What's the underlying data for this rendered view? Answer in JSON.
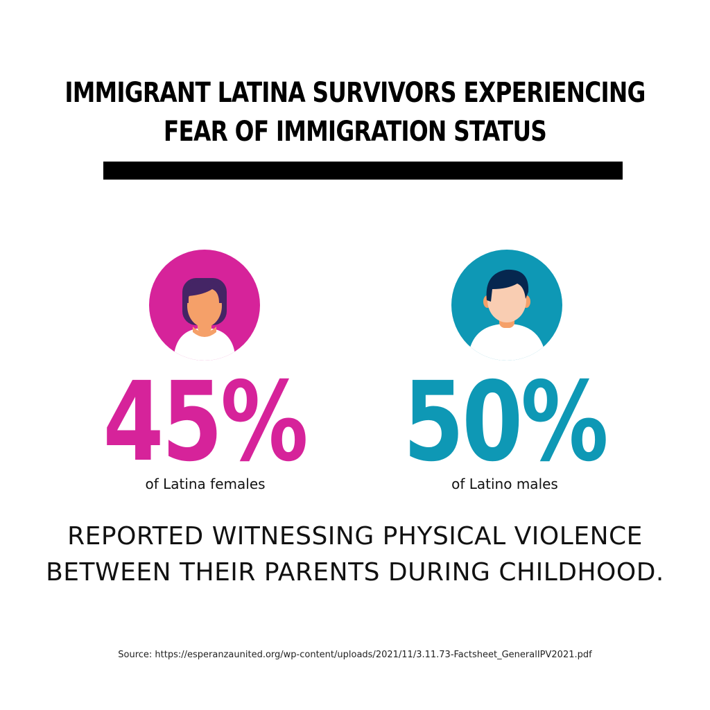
{
  "title": {
    "line1": "IMMIGRANT LATINA SURVIVORS EXPERIENCING",
    "line2": "FEAR OF IMMIGRATION STATUS"
  },
  "stats": [
    {
      "value": "45%",
      "caption": "of Latina females",
      "color": "#d6239a",
      "icon": "female-avatar-icon"
    },
    {
      "value": "50%",
      "caption": "of Latino males",
      "color": "#0e98b5",
      "icon": "male-avatar-icon"
    }
  ],
  "statement": {
    "line1": "REPORTED WITNESSING PHYSICAL VIOLENCE",
    "line2": "BETWEEN THEIR PARENTS DURING CHILDHOOD."
  },
  "source": "Source: https://esperanzaunited.org/wp-content/uploads/2021/11/3.11.73-Factsheet_GeneralIPV2021.pdf"
}
